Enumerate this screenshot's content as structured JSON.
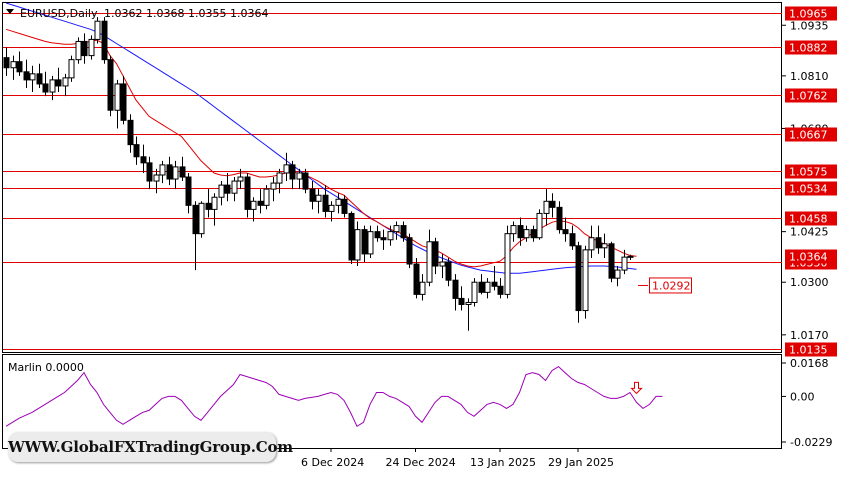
{
  "header": {
    "symbol": "EURUSD,Daily",
    "ohlc": "1.0362 1.0368 1.0355 1.0364"
  },
  "watermark": "WWW.GlobalFXTradingGroup.Com",
  "colors": {
    "candle": "#000000",
    "level_line": "#e00000",
    "ma_fast": "#e00000",
    "ma_slow": "#1a1aff",
    "oscillator": "#9b00b4",
    "arrow": "#e00000",
    "label_bg": "#e00000",
    "current_bg": "#e00000"
  },
  "chart_data": [
    {
      "type": "candlestick",
      "title": "EURUSD,Daily",
      "ylim": [
        1.0135,
        1.099
      ],
      "y_ticks": [
        "1.0935",
        "1.0810",
        "1.0680",
        "1.0425",
        "1.0300",
        "1.0170"
      ],
      "x_tick_labels": [
        {
          "label": "6 Dec 2024",
          "index": 50
        },
        {
          "label": "24 Dec 2024",
          "index": 63
        },
        {
          "label": "13 Jan 2025",
          "index": 76
        },
        {
          "label": "29 Jan 2025",
          "index": 88
        }
      ],
      "levels": [
        {
          "label": "1.0965",
          "value": 1.0965
        },
        {
          "label": "1.0882",
          "value": 1.0882
        },
        {
          "label": "1.0762",
          "value": 1.0762
        },
        {
          "label": "1.0667",
          "value": 1.0667
        },
        {
          "label": "1.0575",
          "value": 1.0575
        },
        {
          "label": "1.0534",
          "value": 1.0534
        },
        {
          "label": "1.0458",
          "value": 1.0458
        },
        {
          "label": "1.0350",
          "value": 1.035
        },
        {
          "label": "1.0135",
          "value": 1.0135
        }
      ],
      "current_price": {
        "label": "1.0364",
        "value": 1.0364
      },
      "target_label": {
        "label": "1.0292",
        "value": 1.0292
      },
      "candles": [
        [
          1.0855,
          1.088,
          1.081,
          1.083
        ],
        [
          1.083,
          1.086,
          1.08,
          1.0845
        ],
        [
          1.0845,
          1.087,
          1.081,
          1.082
        ],
        [
          1.082,
          1.085,
          1.078,
          1.08
        ],
        [
          1.08,
          1.0835,
          1.077,
          1.0815
        ],
        [
          1.0815,
          1.084,
          1.078,
          1.079
        ],
        [
          1.079,
          1.082,
          1.076,
          1.077
        ],
        [
          1.077,
          1.081,
          1.075,
          1.08
        ],
        [
          1.08,
          1.083,
          1.077,
          1.0785
        ],
        [
          1.0785,
          1.0815,
          1.076,
          1.0805
        ],
        [
          1.0805,
          1.086,
          1.0795,
          1.085
        ],
        [
          1.085,
          1.0905,
          1.084,
          1.0895
        ],
        [
          1.0895,
          1.0915,
          1.084,
          1.086
        ],
        [
          1.086,
          1.091,
          1.085,
          1.09
        ],
        [
          1.09,
          1.0955,
          1.089,
          1.0945
        ],
        [
          1.0945,
          1.0955,
          1.084,
          1.085
        ],
        [
          1.085,
          1.086,
          1.071,
          1.0725
        ],
        [
          1.0725,
          1.08,
          1.068,
          1.079
        ],
        [
          1.079,
          1.081,
          1.069,
          1.07
        ],
        [
          1.07,
          1.0715,
          1.062,
          1.064
        ],
        [
          1.064,
          1.066,
          1.059,
          1.061
        ],
        [
          1.061,
          1.064,
          1.057,
          1.0595
        ],
        [
          1.0595,
          1.061,
          1.053,
          1.055
        ],
        [
          1.055,
          1.058,
          1.052,
          1.0565
        ],
        [
          1.0565,
          1.06,
          1.0545,
          1.059
        ],
        [
          1.059,
          1.061,
          1.054,
          1.0555
        ],
        [
          1.0555,
          1.06,
          1.053,
          1.0585
        ],
        [
          1.0585,
          1.061,
          1.055,
          1.056
        ],
        [
          1.056,
          1.057,
          1.047,
          1.049
        ],
        [
          1.049,
          1.05,
          1.033,
          1.042
        ],
        [
          1.042,
          1.05,
          1.041,
          1.0495
        ],
        [
          1.0495,
          1.053,
          1.046,
          1.048
        ],
        [
          1.048,
          1.052,
          1.044,
          1.051
        ],
        [
          1.051,
          1.055,
          1.049,
          1.054
        ],
        [
          1.054,
          1.057,
          1.05,
          1.052
        ],
        [
          1.052,
          1.056,
          1.05,
          1.055
        ],
        [
          1.055,
          1.058,
          1.053,
          1.056
        ],
        [
          1.056,
          1.057,
          1.046,
          1.048
        ],
        [
          1.048,
          1.051,
          1.045,
          1.05
        ],
        [
          1.05,
          1.053,
          1.047,
          1.049
        ],
        [
          1.049,
          1.054,
          1.048,
          1.053
        ],
        [
          1.053,
          1.056,
          1.05,
          1.0545
        ],
        [
          1.0545,
          1.058,
          1.052,
          1.057
        ],
        [
          1.057,
          1.062,
          1.055,
          1.059
        ],
        [
          1.059,
          1.06,
          1.053,
          1.0555
        ],
        [
          1.0555,
          1.058,
          1.053,
          1.057
        ],
        [
          1.057,
          1.058,
          1.052,
          1.053
        ],
        [
          1.053,
          1.055,
          1.048,
          1.05
        ],
        [
          1.05,
          1.053,
          1.047,
          1.0515
        ],
        [
          1.0515,
          1.054,
          1.046,
          1.0475
        ],
        [
          1.0475,
          1.05,
          1.045,
          1.049
        ],
        [
          1.049,
          1.052,
          1.047,
          1.0505
        ],
        [
          1.0505,
          1.0515,
          1.046,
          1.047
        ],
        [
          1.047,
          1.0475,
          1.0345,
          1.0355
        ],
        [
          1.0355,
          1.045,
          1.034,
          1.043
        ],
        [
          1.043,
          1.044,
          1.035,
          1.037
        ],
        [
          1.037,
          1.044,
          1.036,
          1.0425
        ],
        [
          1.0425,
          1.044,
          1.04,
          1.041
        ],
        [
          1.041,
          1.043,
          1.038,
          1.0405
        ],
        [
          1.0405,
          1.044,
          1.039,
          1.0425
        ],
        [
          1.0425,
          1.045,
          1.0405,
          1.044
        ],
        [
          1.044,
          1.045,
          1.04,
          1.041
        ],
        [
          1.041,
          1.042,
          1.0335,
          1.0345
        ],
        [
          1.0345,
          1.036,
          1.026,
          1.027
        ],
        [
          1.027,
          1.032,
          1.0255,
          1.03
        ],
        [
          1.03,
          1.043,
          1.029,
          1.04
        ],
        [
          1.04,
          1.041,
          1.032,
          1.034
        ],
        [
          1.034,
          1.037,
          1.031,
          1.035
        ],
        [
          1.035,
          1.036,
          1.029,
          1.0305
        ],
        [
          1.0305,
          1.032,
          1.023,
          1.026
        ],
        [
          1.026,
          1.029,
          1.023,
          1.0245
        ],
        [
          1.0245,
          1.026,
          1.018,
          1.025
        ],
        [
          1.025,
          1.031,
          1.024,
          1.03
        ],
        [
          1.03,
          1.032,
          1.027,
          1.0275
        ],
        [
          1.0275,
          1.031,
          1.026,
          1.03
        ],
        [
          1.03,
          1.034,
          1.028,
          1.029
        ],
        [
          1.029,
          1.031,
          1.026,
          1.027
        ],
        [
          1.027,
          1.044,
          1.026,
          1.042
        ],
        [
          1.042,
          1.045,
          1.04,
          1.044
        ],
        [
          1.044,
          1.046,
          1.039,
          1.041
        ],
        [
          1.041,
          1.044,
          1.04,
          1.043
        ],
        [
          1.043,
          1.044,
          1.04,
          1.041
        ],
        [
          1.041,
          1.048,
          1.0405,
          1.047
        ],
        [
          1.047,
          1.053,
          1.044,
          1.05
        ],
        [
          1.05,
          1.052,
          1.046,
          1.0485
        ],
        [
          1.0485,
          1.05,
          1.042,
          1.043
        ],
        [
          1.043,
          1.046,
          1.04,
          1.042
        ],
        [
          1.042,
          1.044,
          1.038,
          1.039
        ],
        [
          1.039,
          1.04,
          1.02,
          1.023
        ],
        [
          1.023,
          1.039,
          1.021,
          1.038
        ],
        [
          1.038,
          1.044,
          1.036,
          1.041
        ],
        [
          1.041,
          1.044,
          1.037,
          1.0385
        ],
        [
          1.0385,
          1.042,
          1.036,
          1.0395
        ],
        [
          1.0395,
          1.04,
          1.03,
          1.031
        ],
        [
          1.031,
          1.034,
          1.029,
          1.033
        ],
        [
          1.033,
          1.038,
          1.032,
          1.0362
        ],
        [
          1.0362,
          1.0368,
          1.0355,
          1.0364
        ]
      ],
      "ma_fast": [
        1.0925,
        1.092,
        1.0915,
        1.091,
        1.0905,
        1.09,
        1.0895,
        1.0892,
        1.089,
        1.0888,
        1.0888,
        1.089,
        1.0892,
        1.0895,
        1.0898,
        1.089,
        1.086,
        1.084,
        1.081,
        1.078,
        1.075,
        1.073,
        1.071,
        1.07,
        1.069,
        1.068,
        1.067,
        1.066,
        1.064,
        1.062,
        1.06,
        1.0585,
        1.057,
        1.0565,
        1.0563,
        1.0566,
        1.057,
        1.057,
        1.0565,
        1.056,
        1.056,
        1.0562,
        1.0565,
        1.057,
        1.0572,
        1.057,
        1.0565,
        1.0558,
        1.055,
        1.054,
        1.053,
        1.0522,
        1.0515,
        1.05,
        1.0485,
        1.047,
        1.0458,
        1.045,
        1.044,
        1.0432,
        1.0425,
        1.042,
        1.041,
        1.04,
        1.039,
        1.0385,
        1.038,
        1.0372,
        1.0362,
        1.0352,
        1.0345,
        1.034,
        1.0338,
        1.034,
        1.0344,
        1.0348,
        1.0352,
        1.0365,
        1.0385,
        1.04,
        1.041,
        1.0422,
        1.043,
        1.044,
        1.0448,
        1.0452,
        1.045,
        1.0445,
        1.0435,
        1.042,
        1.041,
        1.0402,
        1.0395,
        1.0388,
        1.038,
        1.0372,
        1.0366,
        1.0364
      ],
      "ma_slow": [
        1.099,
        1.0985,
        1.098,
        1.0975,
        1.097,
        1.0965,
        1.096,
        1.0955,
        1.095,
        1.0945,
        1.094,
        1.0935,
        1.093,
        1.0925,
        1.0918,
        1.091,
        1.09,
        1.089,
        1.088,
        1.087,
        1.086,
        1.085,
        1.084,
        1.083,
        1.082,
        1.081,
        1.08,
        1.079,
        1.078,
        1.077,
        1.0758,
        1.0746,
        1.0734,
        1.0722,
        1.071,
        1.0698,
        1.0686,
        1.0674,
        1.0662,
        1.065,
        1.0638,
        1.0626,
        1.0614,
        1.0602,
        1.059,
        1.0578,
        1.0566,
        1.0554,
        1.0542,
        1.053,
        1.052,
        1.051,
        1.05,
        1.049,
        1.048,
        1.047,
        1.046,
        1.045,
        1.044,
        1.043,
        1.042,
        1.041,
        1.04,
        1.039,
        1.0382,
        1.0374,
        1.0366,
        1.036,
        1.0354,
        1.0348,
        1.0342,
        1.0338,
        1.0334,
        1.033,
        1.0328,
        1.0326,
        1.0324,
        1.0322,
        1.0322,
        1.0322,
        1.0324,
        1.0326,
        1.0328,
        1.033,
        1.0332,
        1.0334,
        1.0336,
        1.0337,
        1.0338,
        1.0339,
        1.034,
        1.034,
        1.034,
        1.0339,
        1.0338,
        1.0336,
        1.0334,
        1.0332
      ]
    },
    {
      "type": "line",
      "title": "Marlin 0.0000",
      "ylim": [
        -0.0229,
        0.0168
      ],
      "y_ticks": [
        "0.0168",
        "0.00",
        "-0.0229"
      ],
      "series": [
        {
          "values": [
            -0.015,
            -0.013,
            -0.011,
            -0.0095,
            -0.008,
            -0.006,
            -0.004,
            -0.002,
            0.0,
            0.002,
            0.005,
            0.008,
            0.012,
            0.006,
            0.002,
            -0.004,
            -0.008,
            -0.012,
            -0.014,
            -0.012,
            -0.01,
            -0.008,
            -0.007,
            -0.004,
            -0.001,
            0.0,
            0.0,
            -0.002,
            -0.006,
            -0.01,
            -0.012,
            -0.008,
            -0.004,
            0.0,
            0.003,
            0.006,
            0.011,
            0.01,
            0.009,
            0.008,
            0.007,
            0.005,
            0.001,
            0.0,
            -0.001,
            -0.002,
            -0.001,
            -0.0005,
            0.0,
            0.001,
            0.002,
            0.001,
            -0.002,
            -0.008,
            -0.015,
            -0.013,
            -0.004,
            0.002,
            0.002,
            0.0,
            -0.001,
            -0.003,
            -0.005,
            -0.01,
            -0.013,
            -0.008,
            -0.003,
            0.0,
            0.0,
            -0.002,
            -0.004,
            -0.008,
            -0.01,
            -0.007,
            -0.004,
            -0.003,
            -0.004,
            -0.006,
            -0.004,
            0.002,
            0.011,
            0.012,
            0.011,
            0.008,
            0.013,
            0.015,
            0.012,
            0.009,
            0.007,
            0.006,
            0.004,
            0.002,
            0.0,
            -0.001,
            -0.001,
            0.0,
            0.002,
            -0.003,
            -0.006,
            -0.004,
            0.0,
            0.0
          ]
        }
      ],
      "signal_arrow_index": 97
    }
  ]
}
